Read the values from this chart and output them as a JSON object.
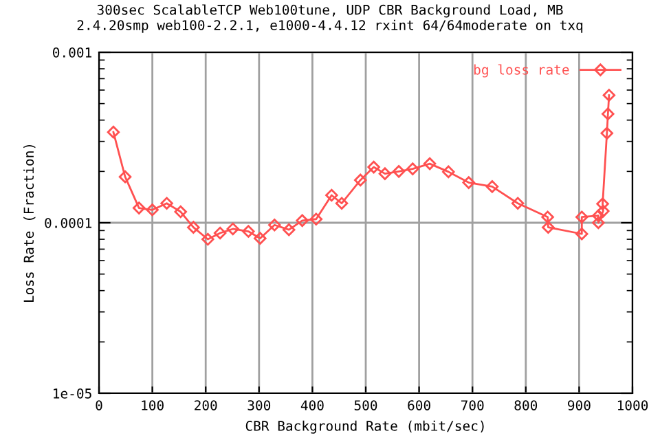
{
  "chart_data": {
    "type": "line",
    "title": "300sec ScalableTCP Web100tune, UDP CBR Background Load, MB",
    "subtitle": "2.4.20smp web100-2.2.1, e1000-4.4.12 rxint 64/64moderate on txq",
    "xlabel": "CBR Background Rate (mbit/sec)",
    "ylabel": "Loss Rate (Fraction)",
    "x": [
      27,
      49,
      75,
      100,
      127,
      153,
      177,
      204,
      227,
      251,
      280,
      302,
      329,
      356,
      381,
      407,
      436,
      455,
      490,
      515,
      536,
      562,
      588,
      620,
      655,
      693,
      737,
      785,
      841,
      842,
      905,
      905,
      936,
      936,
      945,
      944,
      952,
      954,
      956
    ],
    "series": [
      {
        "name": "bg loss rate",
        "color": "#ff5050",
        "values": [
          0.00034,
          0.000186,
          0.000122,
          0.000119,
          0.00013,
          0.000116,
          9.4e-05,
          8e-05,
          8.7e-05,
          9.2e-05,
          8.9e-05,
          8.1e-05,
          9.7e-05,
          9.1e-05,
          0.000103,
          0.000105,
          0.000145,
          0.00013,
          0.000178,
          0.000212,
          0.000194,
          0.0002,
          0.000207,
          0.000222,
          0.000199,
          0.000172,
          0.000163,
          0.00013,
          0.000108,
          9.4e-05,
          8.6e-05,
          0.000108,
          0.00011,
          0.0001,
          0.000117,
          0.000129,
          0.000335,
          0.000435,
          0.00056
        ]
      }
    ],
    "log": "y",
    "xlim": [
      0,
      1000
    ],
    "ylim": [
      1e-05,
      0.001
    ],
    "xticks": [
      0,
      100,
      200,
      300,
      400,
      500,
      600,
      700,
      800,
      900,
      1000
    ],
    "yticks": [
      1e-05,
      0.0001,
      0.001
    ],
    "grid": true,
    "legend": "top right",
    "marker": "diamond",
    "line_style": "solid"
  }
}
